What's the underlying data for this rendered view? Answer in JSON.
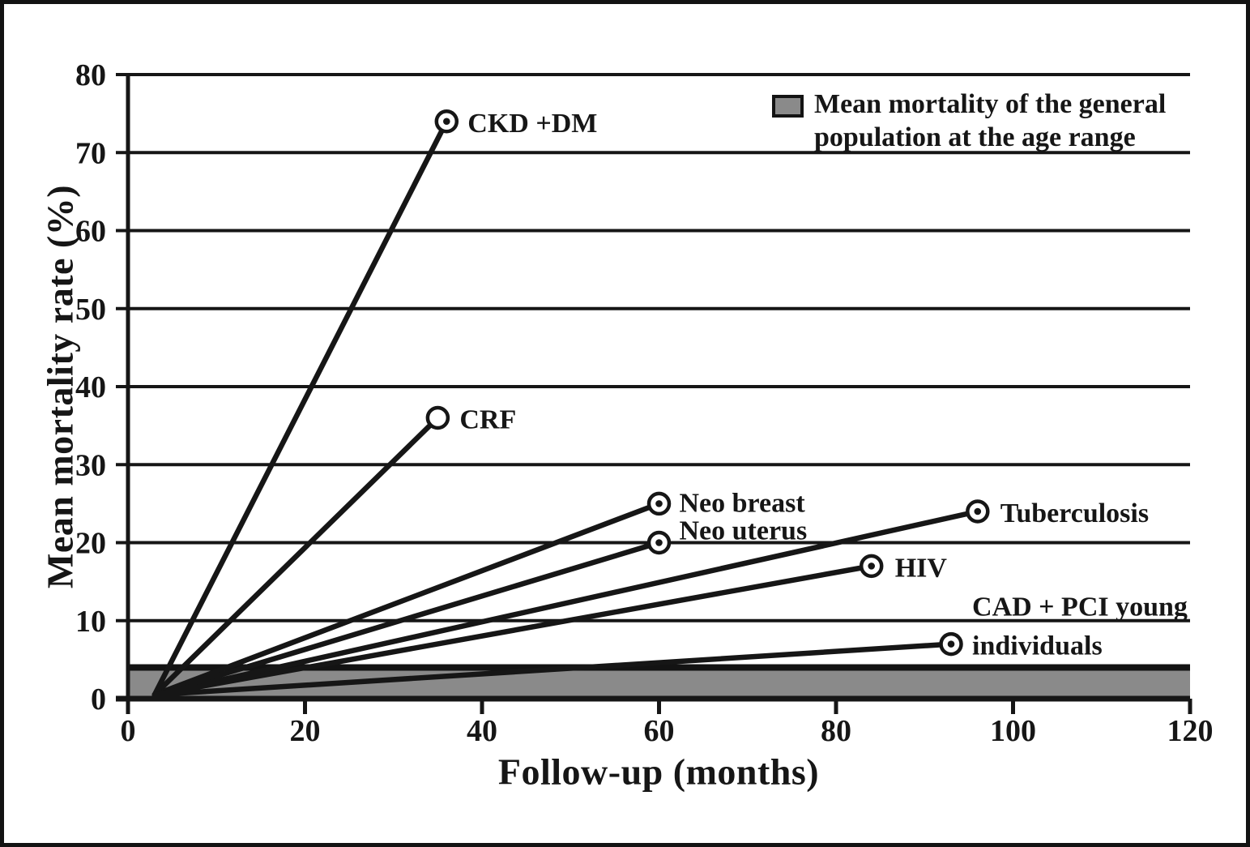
{
  "figure": {
    "background": "#ffffff",
    "border_color": "#131313"
  },
  "chart_data": {
    "type": "line",
    "title": "",
    "xlabel": "Follow-up (months)",
    "ylabel": "Mean mortality rate (%)",
    "xlim": [
      0,
      120
    ],
    "ylim": [
      0,
      80
    ],
    "x_ticks": [
      0,
      20,
      40,
      60,
      80,
      100,
      120
    ],
    "y_ticks": [
      0,
      10,
      20,
      30,
      40,
      50,
      60,
      70,
      80
    ],
    "grid": "horizontal-only",
    "legend_position": "top-right",
    "colors": {
      "line": "#161616",
      "marker_fill": "#ffffff",
      "band_fill": "#8a8a8a",
      "band_edge": "#131313",
      "text": "#161616"
    },
    "fan_origin": {
      "x": 3,
      "y": 0.5
    },
    "series": [
      {
        "id": "ckd-dm",
        "name": "CKD +DM",
        "x": 36,
        "y": 74,
        "marker": "circle-dot",
        "labels": [
          {
            "text": "CKD +DM",
            "dx": 26,
            "dy": 13
          }
        ]
      },
      {
        "id": "crf",
        "name": "CRF",
        "x": 35,
        "y": 36,
        "marker": "circle-open",
        "labels": [
          {
            "text": "CRF",
            "dx": 27,
            "dy": 13
          }
        ]
      },
      {
        "id": "neo-breast",
        "name": "Neo breast",
        "x": 60,
        "y": 25,
        "marker": "circle-dot",
        "labels": [
          {
            "text": "Neo breast",
            "dx": 25,
            "dy": 10
          }
        ]
      },
      {
        "id": "neo-uterus",
        "name": "Neo uterus",
        "x": 60,
        "y": 20,
        "marker": "circle-dot",
        "labels": [
          {
            "text": "Neo uterus",
            "dx": 25,
            "dy": -4
          }
        ]
      },
      {
        "id": "tuberculosis",
        "name": "Tuberculosis",
        "x": 96,
        "y": 24,
        "marker": "circle-dot",
        "labels": [
          {
            "text": "Tuberculosis",
            "dx": 28,
            "dy": 13
          }
        ]
      },
      {
        "id": "hiv",
        "name": "HIV",
        "x": 84,
        "y": 17,
        "marker": "circle-dot",
        "labels": [
          {
            "text": "HIV",
            "dx": 29,
            "dy": 13
          }
        ]
      },
      {
        "id": "cad-pci",
        "name": "CAD + PCI young individuals",
        "x": 93,
        "y": 7,
        "marker": "circle-dot",
        "labels": [
          {
            "text": "CAD + PCI young",
            "dx": 26,
            "dy": -35
          },
          {
            "text": "individuals",
            "dx": 26,
            "dy": 13
          }
        ]
      }
    ],
    "band": {
      "y_from": 0,
      "y_to": 4,
      "legend_lines": [
        "Mean mortality of the general",
        "population at the age range"
      ]
    }
  }
}
